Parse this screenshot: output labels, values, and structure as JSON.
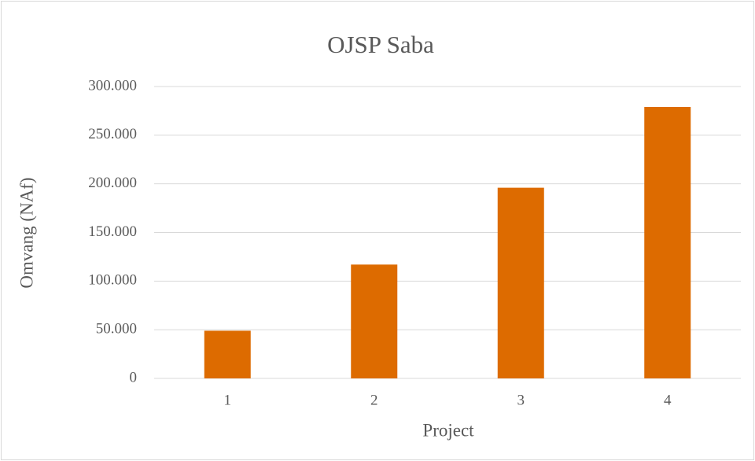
{
  "chart_data": {
    "type": "bar",
    "title": "OJSP Saba",
    "categories": [
      "1",
      "2",
      "3",
      "4"
    ],
    "values": [
      49000,
      117000,
      196000,
      279000
    ],
    "color": "#dd6b00",
    "xlabel": "Project",
    "ylabel": "Omvang (NAf)",
    "ylim": [
      0,
      300000
    ],
    "yticks": [
      0,
      {
        "value": 50000,
        "label": "50.000"
      },
      {
        "value": 100000,
        "label": "100.000"
      },
      {
        "value": 150000,
        "label": "150.000"
      },
      {
        "value": 200000,
        "label": "200.000"
      },
      {
        "value": 250000,
        "label": "250.000"
      },
      {
        "value": 300000,
        "label": "300.000"
      }
    ],
    "grid": true
  }
}
